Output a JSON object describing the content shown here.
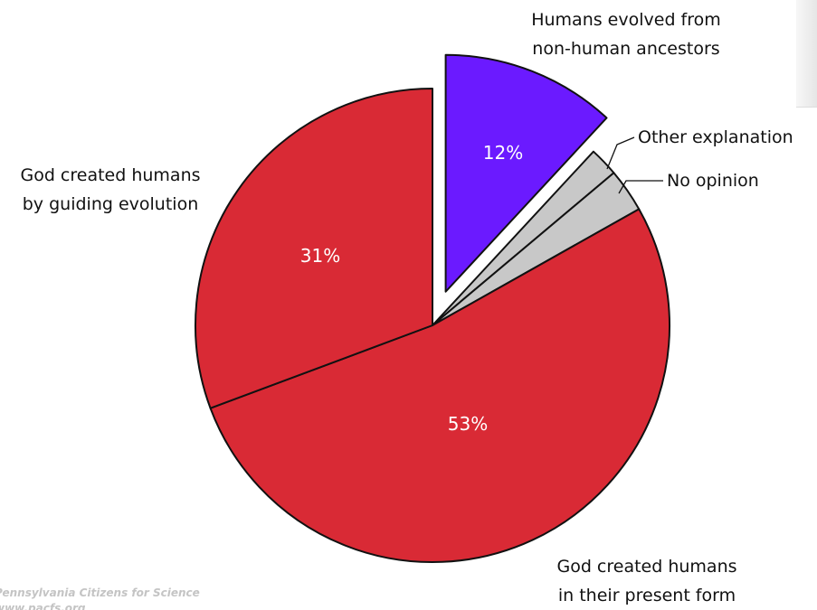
{
  "chart_data": {
    "type": "pie",
    "title": "",
    "slices": [
      {
        "label": "Humans evolved from non-human ancestors",
        "value": 12,
        "display": "12%",
        "color": "#6b1aff",
        "exploded": true
      },
      {
        "label": "Other explanation",
        "value": 2,
        "display": "",
        "color": "#c8c8c8",
        "exploded": false
      },
      {
        "label": "No opinion",
        "value": 3,
        "display": "",
        "color": "#c8c8c8",
        "exploded": false
      },
      {
        "label": "God created humans in their present form",
        "value": 53,
        "display": "53%",
        "color": "#d92a35",
        "exploded": false
      },
      {
        "label": "God created humans by guiding evolution",
        "value": 31,
        "display": "31%",
        "color": "#d92a35",
        "exploded": false
      }
    ],
    "labels": {
      "evolved": [
        "Humans evolved from",
        "non-human ancestors"
      ],
      "other": "Other explanation",
      "no_opinion": "No opinion",
      "guiding": [
        "God created humans",
        "by guiding evolution"
      ],
      "present_form": [
        "God created humans",
        "in their present form"
      ]
    },
    "legend": "none"
  },
  "credit": [
    "Pennsylvania Citizens for Science",
    "www.pacfs.org"
  ]
}
